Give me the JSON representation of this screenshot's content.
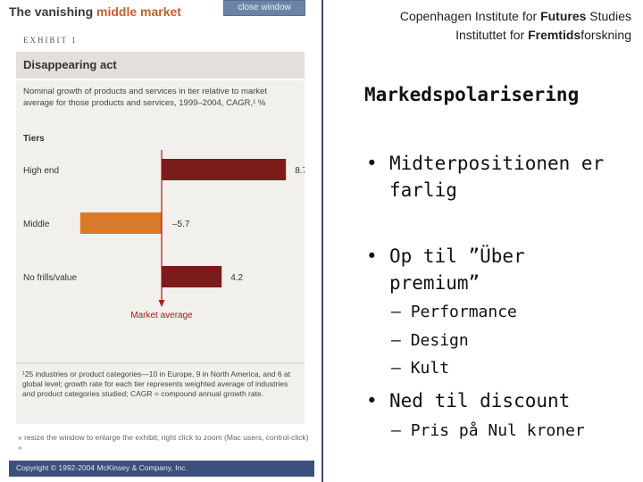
{
  "exhibit": {
    "title_plain": "The vanishing ",
    "title_accent": "middle market",
    "close_button": "close window",
    "exhibit_label": "EXHIBIT 1",
    "chart_title": "Disappearing act",
    "footnote": "¹25 industries or product categories—10 in Europe, 9 in North America, and 6 at global level; growth rate for each tier represents weighted average of industries and product categories studied; CAGR = compound annual growth rate.",
    "resize_note": "« resize the window to enlarge the exhibit; right click to zoom (Mac users, control-click) »",
    "copyright": "Copyright © 1992-2004 McKinsey & Company, Inc.",
    "colors": {
      "dark_bar": "#7a1c1a",
      "middle_bar": "#d97a2b",
      "marker": "#b01818",
      "accent": "#c0612a",
      "panel_bg": "#f2f0ec",
      "footer": "#3d4f7c"
    }
  },
  "chart_data": {
    "type": "bar",
    "orientation": "horizontal",
    "subtitle": "Nominal growth of products and services in tier relative to market average for those products and services, 1999–2004, CAGR,¹ %",
    "axis_title": "Tiers",
    "categories": [
      "High end",
      "Middle",
      "No frills/value"
    ],
    "values": [
      8.7,
      -5.7,
      4.2
    ],
    "value_labels": [
      "8.7",
      "–5.7",
      "4.2"
    ],
    "reference_line": {
      "value": 0,
      "label": "Market average"
    }
  },
  "slide": {
    "institute_line1": {
      "pre": "Copenhagen Institute for ",
      "strong": "Futures",
      "post": " Studies"
    },
    "institute_line2": {
      "pre": "Instituttet for ",
      "strong": "Fremtids",
      "post": "forskning"
    },
    "title": "Markedspolarisering",
    "bullets": [
      {
        "text": "Midterpositionen er farlig",
        "subs": []
      },
      {
        "text": "Op til ”Über premium”",
        "subs": [
          "Performance",
          "Design",
          "Kult"
        ]
      },
      {
        "text": "Ned til discount",
        "subs": [
          "Pris på Nul kroner"
        ]
      }
    ]
  }
}
